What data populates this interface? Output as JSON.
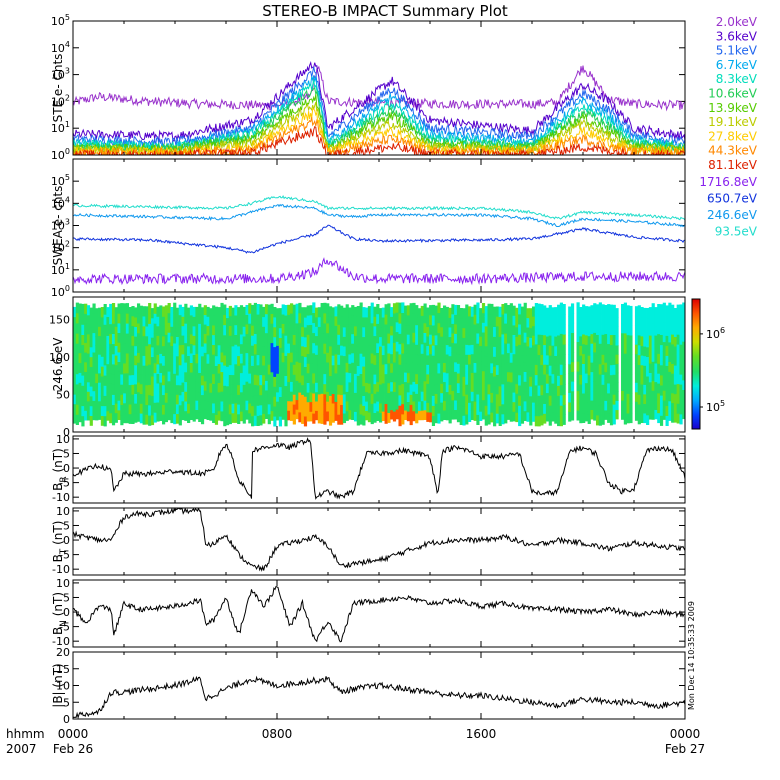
{
  "title": "STEREO-B IMPACT Summary Plot",
  "timestamp_vertical": "Mon Dec 14 10:35:33 2009",
  "x_axis": {
    "unit_label": "hhmm",
    "year_label": "2007",
    "ticks": [
      {
        "time": "0000",
        "date": "Feb 26",
        "hours": 0
      },
      {
        "time": "0800",
        "date": "",
        "hours": 8
      },
      {
        "time": "1600",
        "date": "",
        "hours": 16
      },
      {
        "time": "0000",
        "date": "Feb 27",
        "hours": 24
      }
    ],
    "range_hours": [
      0,
      24
    ]
  },
  "chart_data": [
    {
      "type": "line",
      "id": "ste",
      "ylabel": "STE e- Cnts",
      "yscale": "log",
      "ylim": [
        1,
        100000
      ],
      "yticks": [
        "10^0",
        "10^1",
        "10^2",
        "10^3",
        "10^4",
        "10^5"
      ],
      "series": [
        {
          "name": "2.0keV",
          "color": "#9933cc",
          "hours": [
            0,
            1,
            3,
            5,
            8,
            9.3,
            9.6,
            10,
            12,
            15,
            18,
            19,
            20,
            21,
            22,
            24
          ],
          "values": [
            90,
            150,
            100,
            80,
            70,
            150,
            2000,
            100,
            90,
            80,
            80,
            90,
            2000,
            120,
            80,
            70
          ]
        },
        {
          "name": "3.6keV",
          "color": "#5500cc",
          "hours": [
            0,
            4,
            7,
            9.5,
            10,
            12.5,
            14,
            18,
            20,
            21,
            22,
            24
          ],
          "values": [
            6,
            5,
            20,
            3000,
            10,
            600,
            20,
            8,
            400,
            100,
            10,
            5
          ]
        },
        {
          "name": "5.1keV",
          "color": "#2266ee",
          "hours": [
            0,
            4,
            7,
            9.5,
            10,
            12.5,
            14,
            18,
            20,
            21,
            22,
            24
          ],
          "values": [
            4,
            3,
            10,
            1500,
            5,
            300,
            10,
            5,
            200,
            50,
            6,
            3
          ]
        },
        {
          "name": "6.7keV",
          "color": "#00aaee",
          "hours": [
            0,
            4,
            7,
            9.5,
            10,
            12.5,
            14,
            18,
            20,
            21,
            22,
            24
          ],
          "values": [
            3,
            2,
            8,
            800,
            3,
            150,
            6,
            3,
            100,
            30,
            4,
            2
          ]
        },
        {
          "name": "8.3keV",
          "color": "#00ddbb",
          "hours": [
            0,
            4,
            7,
            9.5,
            10,
            12.5,
            14,
            18,
            20,
            21,
            22,
            24
          ],
          "values": [
            2.5,
            2,
            6,
            500,
            2.5,
            80,
            4,
            2.5,
            60,
            20,
            3,
            2
          ]
        },
        {
          "name": "10.6keV",
          "color": "#22cc55",
          "hours": [
            0,
            4,
            7,
            9.5,
            10,
            12.5,
            14,
            18,
            20,
            21,
            22,
            24
          ],
          "values": [
            2,
            1.8,
            5,
            300,
            2,
            50,
            3,
            2,
            40,
            12,
            2.5,
            1.8
          ]
        },
        {
          "name": "13.9keV",
          "color": "#55cc00",
          "hours": [
            0,
            4,
            7,
            9.5,
            10,
            12.5,
            14,
            18,
            20,
            21,
            22,
            24
          ],
          "values": [
            1.8,
            1.6,
            4,
            150,
            1.8,
            30,
            2.5,
            1.8,
            25,
            8,
            2,
            1.6
          ]
        },
        {
          "name": "19.1keV",
          "color": "#bbcc00",
          "hours": [
            0,
            4,
            7,
            9.5,
            10,
            12.5,
            14,
            18,
            20,
            21,
            22,
            24
          ],
          "values": [
            1.6,
            1.5,
            3,
            80,
            1.6,
            15,
            2,
            1.6,
            15,
            5,
            1.8,
            1.5
          ]
        },
        {
          "name": "27.8keV",
          "color": "#ffcc00",
          "hours": [
            0,
            4,
            7,
            9.5,
            10,
            12.5,
            14,
            18,
            20,
            21,
            22,
            24
          ],
          "values": [
            1.4,
            1.3,
            2,
            40,
            1.4,
            8,
            1.6,
            1.4,
            8,
            3,
            1.5,
            1.3
          ]
        },
        {
          "name": "44.3keV",
          "color": "#ff8800",
          "hours": [
            0,
            4,
            7,
            9.5,
            10,
            12.5,
            14,
            18,
            20,
            21,
            22,
            24
          ],
          "values": [
            1.2,
            1.2,
            1.5,
            20,
            1.2,
            4,
            1.3,
            1.2,
            4,
            2,
            1.3,
            1.2
          ]
        },
        {
          "name": "81.1keV",
          "color": "#dd2200",
          "hours": [
            0,
            4,
            7,
            9.5,
            10,
            12.5,
            14,
            18,
            20,
            21,
            22,
            24
          ],
          "values": [
            1,
            1,
            1.2,
            8,
            1,
            2,
            1.1,
            1,
            2,
            1.4,
            1.1,
            1
          ]
        }
      ]
    },
    {
      "type": "line",
      "id": "swea",
      "ylabel": "SWEA e- cnts",
      "yscale": "log",
      "ylim": [
        1,
        1000000
      ],
      "yticks": [
        "10^0",
        "10^1",
        "10^2",
        "10^3",
        "10^4",
        "10^5"
      ],
      "series": [
        {
          "name": "1716.8eV",
          "color": "#8822ee",
          "hours": [
            0,
            4,
            8,
            9.5,
            10,
            11,
            12,
            16,
            20,
            24
          ],
          "values": [
            4,
            4,
            4,
            8,
            30,
            5,
            4,
            4,
            5,
            5
          ]
        },
        {
          "name": "650.7eV",
          "color": "#1133dd",
          "hours": [
            0,
            3,
            6,
            7,
            8,
            9.5,
            10,
            11,
            12,
            16,
            18,
            20,
            22,
            24
          ],
          "values": [
            250,
            220,
            100,
            60,
            150,
            400,
            1000,
            250,
            200,
            220,
            250,
            700,
            300,
            200
          ]
        },
        {
          "name": "246.6eV",
          "color": "#1199ee",
          "hours": [
            0,
            3,
            6,
            7,
            8,
            9.5,
            10,
            11,
            12,
            16,
            18,
            19,
            20,
            22,
            24
          ],
          "values": [
            3000,
            2500,
            2000,
            4000,
            8000,
            6000,
            3000,
            2500,
            3000,
            3000,
            2000,
            1000,
            2000,
            1500,
            1000
          ]
        },
        {
          "name": "93.5eV",
          "color": "#22ddcc",
          "hours": [
            0,
            3,
            6,
            7,
            8,
            9.5,
            10,
            11,
            12,
            16,
            18,
            19,
            20,
            22,
            24
          ],
          "values": [
            8000,
            7000,
            6000,
            10000,
            20000,
            12000,
            6000,
            6000,
            6000,
            6000,
            4000,
            2000,
            4000,
            3000,
            2000
          ]
        }
      ]
    },
    {
      "type": "heatmap",
      "id": "pad",
      "ylabel": "246.6 eV",
      "ylim": [
        0,
        180
      ],
      "yticks": [
        "0",
        "50",
        "100",
        "150"
      ],
      "colorbar_ticks": [
        "10^6",
        "10^5"
      ],
      "colorbar_range": [
        50000,
        3000000
      ],
      "colorbar_colors": [
        "#1a00cc",
        "#0044ff",
        "#00aaff",
        "#00eedd",
        "#22dd66",
        "#66dd22",
        "#ccdd00",
        "#ffaa00",
        "#ff5500",
        "#dd0000"
      ]
    },
    {
      "type": "line",
      "id": "br",
      "ylabel": "B_R (nT)",
      "ylim": [
        -12,
        11
      ],
      "yticks": [
        "10",
        "5",
        "0",
        "-5",
        "-10"
      ],
      "series": [
        {
          "name": "",
          "color": "#000000",
          "hours": [
            0,
            0.4,
            1,
            1.5,
            1.6,
            2,
            3,
            4,
            5,
            5.5,
            5.8,
            6,
            6.2,
            6.5,
            7,
            7,
            8,
            8.5,
            9,
            9.3,
            9.5,
            10,
            10.5,
            11,
            11.5,
            12,
            13,
            14,
            14.3,
            14.5,
            15,
            15.5,
            16,
            17,
            17.5,
            18,
            18.5,
            19,
            19.5,
            20,
            20.5,
            21,
            21.5,
            22,
            22.5,
            23,
            23.5,
            24
          ],
          "values": [
            -2,
            -1,
            1,
            -1,
            -8,
            -2,
            -2,
            -1,
            -2,
            -1,
            6,
            8,
            5,
            -4,
            -10,
            6,
            8,
            7,
            9,
            10,
            -10,
            -8,
            -10,
            -8,
            5,
            5,
            6,
            4,
            -9,
            6,
            7,
            6,
            4,
            4,
            5,
            -8,
            -9,
            -8,
            6,
            7,
            5,
            -5,
            -8,
            -7,
            6,
            7,
            6,
            -3
          ]
        }
      ]
    },
    {
      "type": "line",
      "id": "bt",
      "ylabel": "B_T (nT)",
      "ylim": [
        -12,
        11
      ],
      "yticks": [
        "10",
        "5",
        "0",
        "-5",
        "-10"
      ],
      "series": [
        {
          "name": "",
          "color": "#000000",
          "hours": [
            0,
            1,
            1.5,
            2,
            2.5,
            3,
            4,
            5,
            5.2,
            5.4,
            6,
            6.5,
            7,
            7.5,
            8,
            8.5,
            9,
            9.5,
            10,
            10.5,
            11,
            12,
            13,
            14,
            15,
            16,
            17,
            18,
            19,
            20,
            21,
            22,
            23,
            24
          ],
          "values": [
            2,
            0,
            0,
            8,
            9,
            9,
            10,
            10,
            -1,
            -2,
            2,
            -5,
            -9,
            -10,
            -2,
            -1,
            0,
            1,
            -2,
            -9,
            -8,
            -7,
            -4,
            -1,
            0,
            0,
            1,
            -2,
            0,
            -1,
            -3,
            -1,
            -2,
            -3
          ]
        }
      ]
    },
    {
      "type": "line",
      "id": "bn",
      "ylabel": "B_N (nT)",
      "ylim": [
        -12,
        11
      ],
      "yticks": [
        "10",
        "5",
        "0",
        "-5",
        "-10"
      ],
      "series": [
        {
          "name": "",
          "color": "#000000",
          "hours": [
            0,
            0.5,
            1,
            1.5,
            1.6,
            2,
            2.5,
            3,
            4,
            5,
            5.2,
            5.5,
            6,
            6.5,
            7,
            7.5,
            8,
            8.5,
            9,
            9.5,
            10,
            10.5,
            11,
            12,
            13,
            14,
            15,
            16,
            17,
            18,
            19,
            20,
            21,
            22,
            23,
            24
          ],
          "values": [
            1,
            -4,
            2,
            1,
            -8,
            3,
            1,
            1,
            2,
            4,
            -4,
            -3,
            5,
            -8,
            8,
            2,
            9,
            -5,
            3,
            -10,
            -3,
            -10,
            3,
            4,
            5,
            3,
            4,
            2,
            3,
            1,
            1,
            0,
            1,
            -1,
            0,
            -1
          ]
        }
      ]
    },
    {
      "type": "line",
      "id": "bmag",
      "ylabel": "|B| (nT)",
      "ylim": [
        0,
        20
      ],
      "yticks": [
        "20",
        "15",
        "10",
        "5",
        "0"
      ],
      "series": [
        {
          "name": "",
          "color": "#000000",
          "hours": [
            0,
            1,
            1.5,
            2,
            3,
            4,
            5,
            5.2,
            6,
            7,
            8,
            9,
            10,
            10.5,
            11,
            12,
            13,
            14,
            15,
            16,
            17,
            18,
            19,
            20,
            21,
            22,
            23,
            24
          ],
          "values": [
            1,
            2,
            8,
            8,
            9,
            10,
            12,
            6,
            9,
            12,
            10,
            11,
            12,
            8,
            9,
            10,
            9,
            8,
            7,
            7,
            6,
            5,
            4,
            6,
            5,
            5,
            4,
            5
          ]
        }
      ]
    }
  ]
}
